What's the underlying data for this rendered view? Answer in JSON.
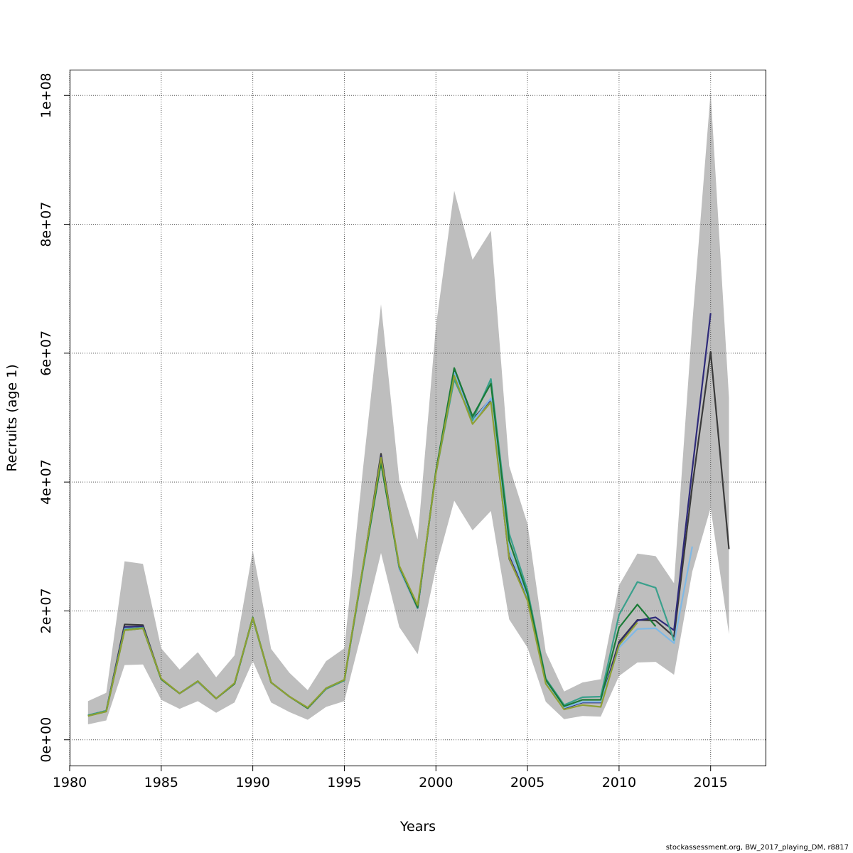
{
  "chart_data": {
    "type": "line",
    "title": "",
    "xlabel": "Years",
    "ylabel": "Recruits (age 1)",
    "xlim": [
      1980,
      2018
    ],
    "ylim": [
      -4000000,
      104000000
    ],
    "x_ticks": [
      1980,
      1985,
      1990,
      1995,
      2000,
      2005,
      2010,
      2015
    ],
    "x_tick_labels": [
      "1980",
      "1985",
      "1990",
      "1995",
      "2000",
      "2005",
      "2010",
      "2015"
    ],
    "y_ticks": [
      0,
      20000000,
      40000000,
      60000000,
      80000000,
      100000000
    ],
    "y_tick_labels": [
      "0e+00",
      "2e+07",
      "4e+07",
      "6e+07",
      "8e+07",
      "1e+08"
    ],
    "grid": true,
    "legend": "none",
    "band": {
      "color": "#bebebe",
      "x": [
        1981,
        1982,
        1983,
        1984,
        1985,
        1986,
        1987,
        1988,
        1989,
        1990,
        1991,
        1992,
        1993,
        1994,
        1995,
        1996,
        1997,
        1998,
        1999,
        2000,
        2001,
        2002,
        2003,
        2004,
        2005,
        2006,
        2007,
        2008,
        2009,
        2010,
        2011,
        2012,
        2013,
        2014,
        2015,
        2016
      ],
      "upper": [
        6000000,
        7300000,
        27700000,
        27300000,
        14200000,
        10900000,
        13600000,
        9700000,
        13100000,
        29400000,
        14100000,
        10400000,
        7700000,
        12200000,
        14200000,
        41600000,
        67600000,
        40200000,
        31100000,
        64200000,
        85200000,
        74500000,
        79000000,
        42500000,
        33500000,
        13600000,
        7500000,
        8900000,
        9400000,
        24000000,
        28900000,
        28500000,
        24300000,
        64600000,
        100500000,
        53100000
      ],
      "lower": [
        2400000,
        3000000,
        11600000,
        11700000,
        6200000,
        4800000,
        6000000,
        4200000,
        5800000,
        12200000,
        5800000,
        4300000,
        3100000,
        5100000,
        6000000,
        17200000,
        29000000,
        17500000,
        13300000,
        26700000,
        37100000,
        32500000,
        35500000,
        18700000,
        14300000,
        5900000,
        3200000,
        3700000,
        3600000,
        9900000,
        12000000,
        12100000,
        10100000,
        26100000,
        36000000,
        16400000
      ]
    },
    "series": [
      {
        "color": "#3a3a3a",
        "x": [
          1981,
          1982,
          1983,
          1984,
          1985,
          1986,
          1987,
          1988,
          1989,
          1990,
          1991,
          1992,
          1993,
          1994,
          1995,
          1996,
          1997,
          1998,
          1999,
          2000,
          2001,
          2002,
          2003,
          2004,
          2005,
          2006,
          2007,
          2008,
          2009,
          2010,
          2011,
          2012,
          2013,
          2014,
          2015,
          2016
        ],
        "values": [
          3800000,
          4500000,
          17900000,
          17800000,
          9400000,
          7200000,
          9000000,
          6400000,
          8700000,
          18900000,
          8900000,
          6700000,
          4900000,
          7900000,
          9200000,
          26400000,
          44400000,
          26600000,
          20400000,
          41600000,
          57200000,
          49700000,
          52900000,
          28100000,
          21800000,
          9000000,
          4900000,
          5800000,
          5800000,
          15200000,
          18600000,
          18500000,
          16000000,
          39400000,
          60200000,
          29600000
        ]
      },
      {
        "color": "#2e2a7a",
        "x": [
          1981,
          1982,
          1983,
          1984,
          1985,
          1986,
          1987,
          1988,
          1989,
          1990,
          1991,
          1992,
          1993,
          1994,
          1995,
          1996,
          1997,
          1998,
          1999,
          2000,
          2001,
          2002,
          2003,
          2004,
          2005,
          2006,
          2007,
          2008,
          2009,
          2010,
          2011,
          2012,
          2013,
          2014,
          2015
        ],
        "values": [
          3800000,
          4500000,
          17500000,
          17600000,
          9400000,
          7200000,
          9000000,
          6400000,
          8700000,
          18900000,
          8900000,
          6700000,
          4900000,
          7900000,
          9200000,
          26400000,
          44000000,
          26600000,
          20400000,
          41600000,
          57200000,
          49500000,
          52800000,
          28500000,
          21900000,
          9000000,
          4900000,
          5800000,
          5800000,
          15000000,
          18500000,
          19000000,
          17000000,
          42000000,
          66200000
        ]
      },
      {
        "color": "#7fb9e6",
        "x": [
          1981,
          1982,
          1983,
          1984,
          1985,
          1986,
          1987,
          1988,
          1989,
          1990,
          1991,
          1992,
          1993,
          1994,
          1995,
          1996,
          1997,
          1998,
          1999,
          2000,
          2001,
          2002,
          2003,
          2004,
          2005,
          2006,
          2007,
          2008,
          2009,
          2010,
          2011,
          2012,
          2013,
          2014
        ],
        "values": [
          3800000,
          4500000,
          17200000,
          17400000,
          9400000,
          7200000,
          9000000,
          6400000,
          8700000,
          18900000,
          8900000,
          6700000,
          4900000,
          7900000,
          9200000,
          26400000,
          43600000,
          26600000,
          20400000,
          41600000,
          57000000,
          49400000,
          53000000,
          29500000,
          22200000,
          9100000,
          5000000,
          5900000,
          5900000,
          14300000,
          17200000,
          17300000,
          15000000,
          30000000
        ]
      },
      {
        "color": "#3aa08c",
        "x": [
          1981,
          1982,
          1983,
          1984,
          1985,
          1986,
          1987,
          1988,
          1989,
          1990,
          1991,
          1992,
          1993,
          1994,
          1995,
          1996,
          1997,
          1998,
          1999,
          2000,
          2001,
          2002,
          2003,
          2004,
          2005,
          2006,
          2007,
          2008,
          2009,
          2010,
          2011,
          2012,
          2013
        ],
        "values": [
          3800000,
          4500000,
          17100000,
          17400000,
          9400000,
          7200000,
          9100000,
          6400000,
          8700000,
          18800000,
          8900000,
          6700000,
          4900000,
          7900000,
          9200000,
          26200000,
          43000000,
          26800000,
          20600000,
          41400000,
          55900000,
          49600000,
          56000000,
          32000000,
          23200000,
          9500000,
          5400000,
          6600000,
          6700000,
          19400000,
          24500000,
          23600000,
          15400000
        ]
      },
      {
        "color": "#1a7a36",
        "x": [
          1981,
          1982,
          1983,
          1984,
          1985,
          1986,
          1987,
          1988,
          1989,
          1990,
          1991,
          1992,
          1993,
          1994,
          1995,
          1996,
          1997,
          1998,
          1999,
          2000,
          2001,
          2002,
          2003,
          2004,
          2005,
          2006,
          2007,
          2008,
          2009,
          2010,
          2011,
          2012
        ],
        "values": [
          3700000,
          4400000,
          17000000,
          17300000,
          9400000,
          7200000,
          9100000,
          6400000,
          8700000,
          19000000,
          8900000,
          6700000,
          4900000,
          8000000,
          9300000,
          26500000,
          43000000,
          26900000,
          20500000,
          41700000,
          57700000,
          50200000,
          55300000,
          30900000,
          22600000,
          9300000,
          5200000,
          6200000,
          6200000,
          17400000,
          21000000,
          17600000
        ]
      },
      {
        "color": "#8fa033",
        "x": [
          1981,
          1982,
          1983,
          1984,
          1985,
          1986,
          1987,
          1988,
          1989,
          1990,
          1991,
          1992,
          1993,
          1994,
          1995,
          1996,
          1997,
          1998,
          1999,
          2000,
          2001,
          2002,
          2003,
          2004,
          2005,
          2006,
          2007,
          2008,
          2009,
          2010,
          2011
        ],
        "values": [
          3700000,
          4400000,
          17000000,
          17300000,
          9500000,
          7200000,
          9100000,
          6400000,
          8800000,
          18900000,
          8900000,
          6700000,
          5000000,
          8000000,
          9300000,
          26600000,
          43800000,
          27000000,
          20900000,
          41400000,
          56500000,
          49000000,
          52400000,
          28200000,
          21600000,
          8700000,
          4700000,
          5400000,
          5100000,
          14700000,
          18200000
        ]
      }
    ]
  },
  "footer": "stockassessment.org, BW_2017_playing_DM, r8817"
}
